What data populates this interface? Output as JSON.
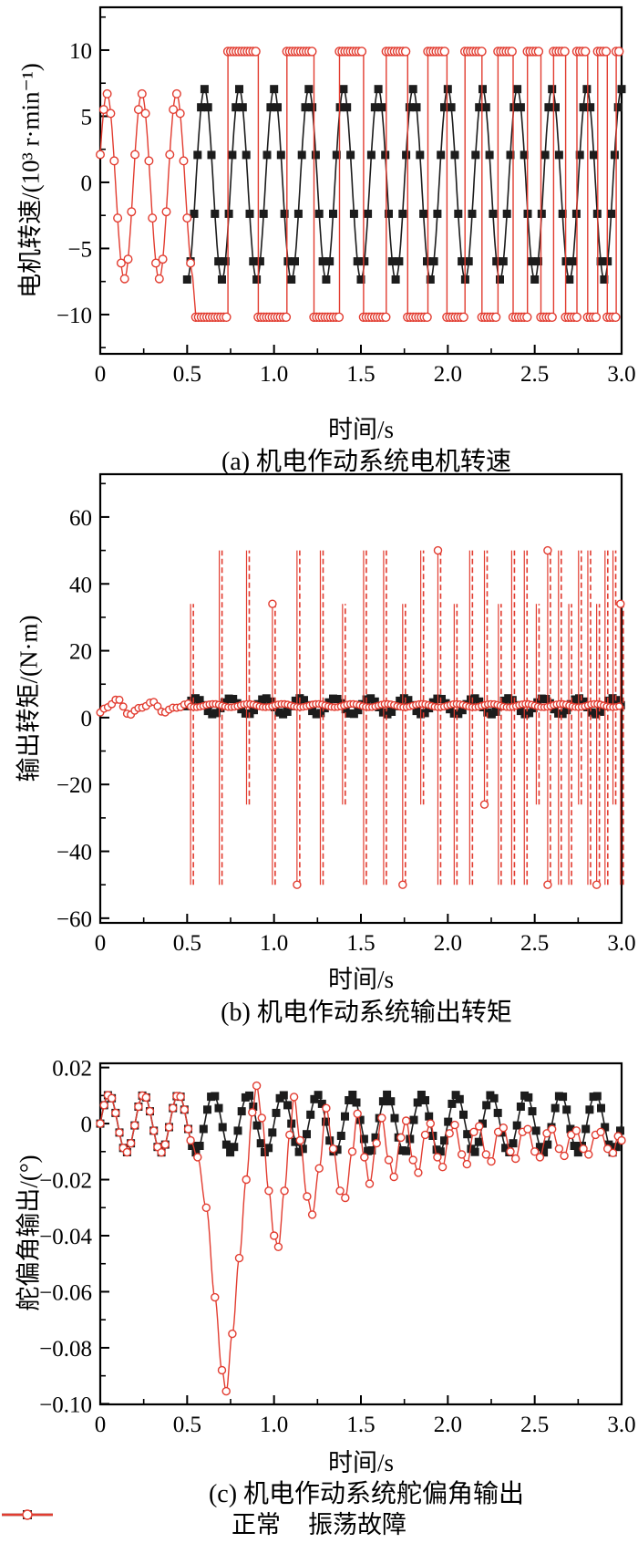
{
  "chart_data": [
    {
      "id": "a",
      "type": "line",
      "title": "(a) 机电作动系统电机转速",
      "xlabel": "时间/s",
      "ylabel": "电机转速/(10³ r·min⁻¹)",
      "xlim": [
        0,
        3
      ],
      "ylim": [
        -12.97,
        13.24
      ],
      "x_ticks": [
        {
          "v": 0,
          "label": "0"
        },
        {
          "v": 0.5,
          "label": "0.5"
        },
        {
          "v": 1.0,
          "label": "1.0"
        },
        {
          "v": 1.5,
          "label": "1.5"
        },
        {
          "v": 2.0,
          "label": "2.0"
        },
        {
          "v": 2.5,
          "label": "2.5"
        },
        {
          "v": 3.0,
          "label": "3.0"
        }
      ],
      "x_minor": [
        0.25,
        0.75,
        1.25,
        1.75,
        2.25,
        2.75
      ],
      "y_ticks": [
        {
          "v": 10,
          "label": "10"
        },
        {
          "v": 5,
          "label": "5"
        },
        {
          "v": 0,
          "label": "0"
        },
        {
          "v": -5,
          "label": "−5"
        },
        {
          "v": -10,
          "label": "−10"
        }
      ],
      "y_minor": [
        12.5,
        7.5,
        2.5,
        -2.5,
        -7.5,
        -12.5
      ],
      "series": [
        {
          "name": "正常",
          "color": "#1c1c1c",
          "marker": "square",
          "model": "sine",
          "t_start": 0.5,
          "t_end": 3.0,
          "amplitude": 7.2,
          "offset": -0.15,
          "period": 0.2,
          "phase": 1.5708,
          "marker_dt": 0.02,
          "description": "normal motor speed: ±7×10³ r/min sinusoid, period 0.2 s, starting at t=0.5 s"
        },
        {
          "name": "振荡故障",
          "color": "#e23c30",
          "marker": "circle",
          "model": "sine_square",
          "sine": {
            "t_start": 0,
            "t_end": 0.535,
            "amplitude": 7.0,
            "offset": -0.3,
            "period": 0.2,
            "phase": 0.35
          },
          "square": {
            "t_start": 0.55,
            "t_end": 3.0,
            "high": 9.9,
            "low": -10.2,
            "h0": 0.185,
            "h_slope": 0.0563,
            "h_min": 0.048
          },
          "marker_dt": 0.02,
          "flat_marker_dt": 0.016,
          "description": "oscillation fault: sinusoid until 0.5 s, then saturated square wave at ±10×10³ r/min with increasing frequency"
        }
      ]
    },
    {
      "id": "b",
      "type": "line",
      "title": "(b) 机电作动系统输出转矩",
      "xlabel": "时间/s",
      "ylabel": "输出转矩/(N·m)",
      "xlim": [
        0,
        3
      ],
      "ylim": [
        -61.4,
        72.8
      ],
      "x_ticks": [
        {
          "v": 0,
          "label": "0"
        },
        {
          "v": 0.5,
          "label": "0.5"
        },
        {
          "v": 1.0,
          "label": "1.0"
        },
        {
          "v": 1.5,
          "label": "1.5"
        },
        {
          "v": 2.0,
          "label": "2.0"
        },
        {
          "v": 2.5,
          "label": "2.5"
        },
        {
          "v": 3.0,
          "label": "3.0"
        }
      ],
      "x_minor": [
        0.25,
        0.75,
        1.25,
        1.75,
        2.25,
        2.75
      ],
      "y_ticks": [
        {
          "v": 60,
          "label": "60"
        },
        {
          "v": 40,
          "label": "40"
        },
        {
          "v": 20,
          "label": "20"
        },
        {
          "v": 0,
          "label": "0"
        },
        {
          "v": -20,
          "label": "−20"
        },
        {
          "v": -40,
          "label": "−40"
        },
        {
          "v": -60,
          "label": "−60"
        }
      ],
      "y_minor": [
        70,
        50,
        30,
        10,
        -10,
        -30,
        -50
      ],
      "series": [
        {
          "name": "正常",
          "color": "#1c1c1c",
          "marker": "square",
          "model": "sine",
          "t_start": 0.5,
          "t_end": 3.0,
          "amplitude": 2.4,
          "offset": 3.4,
          "period": 0.2,
          "phase": 3.1416,
          "marker_dt": 0.024,
          "description": "normal output torque: ~3.4±2.4 N·m sinusoid after 0.5 s"
        },
        {
          "name": "振荡故障",
          "color": "#e23c30",
          "marker": "circle",
          "model": "torque_fault",
          "pre": {
            "t_start": 0,
            "t_end": 0.52,
            "offset": 3.0,
            "amp1": 2.6,
            "decay1": 2.2,
            "freq1": 5,
            "phase1": -1.1,
            "amp2": 1.0,
            "decay2": 1.2,
            "freq2": 10,
            "phase2": 1.0
          },
          "baseline": {
            "t_start": 0.52,
            "t_end": 3.0,
            "level": 3.6,
            "wobble": 0.5
          },
          "spikes": {
            "start": 0.52,
            "t_end": 3.0,
            "h0": 0.165,
            "h_slope": 0.05,
            "h_min": 0.042,
            "top": 50,
            "bottom": -50,
            "alt_top": 34,
            "alt_bottom": -26
          },
          "marker_dt": 0.022,
          "baseline_marker_dt": 0.018,
          "description": "fault torque: ~3.6 N·m baseline with dashed spikes to ±50 N·m (some ±34/−26) at increasing rate after 0.52 s"
        }
      ]
    },
    {
      "id": "c",
      "type": "line",
      "title": "(c) 机电作动系统舵偏角输出",
      "xlabel": "时间/s",
      "ylabel": "舵偏角输出/(°)",
      "xlim": [
        0,
        3
      ],
      "ylim": [
        -0.1002,
        0.0215
      ],
      "x_ticks": [
        {
          "v": 0,
          "label": "0"
        },
        {
          "v": 0.5,
          "label": "0.5"
        },
        {
          "v": 1.0,
          "label": "1.0"
        },
        {
          "v": 1.5,
          "label": "1.5"
        },
        {
          "v": 2.0,
          "label": "2.0"
        },
        {
          "v": 2.5,
          "label": "2.5"
        },
        {
          "v": 3.0,
          "label": "3.0"
        }
      ],
      "x_minor": [
        0.25,
        0.75,
        1.25,
        1.75,
        2.25,
        2.75
      ],
      "y_ticks": [
        {
          "v": 0.02,
          "label": "0.02"
        },
        {
          "v": 0,
          "label": "0"
        },
        {
          "v": -0.02,
          "label": "−0.02"
        },
        {
          "v": -0.04,
          "label": "−0.04"
        },
        {
          "v": -0.06,
          "label": "−0.06"
        },
        {
          "v": -0.08,
          "label": "−0.08"
        },
        {
          "v": -0.1,
          "label": "−0.10"
        }
      ],
      "y_minor": [
        0.01,
        -0.01,
        -0.03,
        -0.05,
        -0.07,
        -0.09
      ],
      "series": [
        {
          "name": "正常",
          "color": "#1c1c1c",
          "marker": "square",
          "model": "sine",
          "t_start": 0,
          "t_end": 3.0,
          "amplitude": 0.0103,
          "offset": 0,
          "period": 0.2,
          "phase": 0,
          "marker_dt": 0.022,
          "description": "normal rudder deflection: ±0.01° sinusoid, period 0.2 s"
        },
        {
          "name": "振荡故障",
          "color": "#e23c30",
          "marker": "circle",
          "model": "sine_keypoints",
          "sine": {
            "t_start": 0,
            "t_end": 0.52,
            "amplitude": 0.0103,
            "offset": 0,
            "period": 0.2,
            "phase": 0
          },
          "marker_dt": 0.022,
          "keypoints": [
            [
              0.52,
              -0.006
            ],
            [
              0.56,
              -0.012
            ],
            [
              0.61,
              -0.03
            ],
            [
              0.66,
              -0.062
            ],
            [
              0.7,
              -0.088
            ],
            [
              0.725,
              -0.0955
            ],
            [
              0.76,
              -0.075
            ],
            [
              0.8,
              -0.048
            ],
            [
              0.84,
              -0.02
            ],
            [
              0.875,
              0.004
            ],
            [
              0.9,
              0.0135
            ],
            [
              0.93,
              0.002
            ],
            [
              0.97,
              -0.024
            ],
            [
              1.0,
              -0.04
            ],
            [
              1.025,
              -0.044
            ],
            [
              1.06,
              -0.024
            ],
            [
              1.09,
              -0.004
            ],
            [
              1.115,
              0.0095
            ],
            [
              1.15,
              -0.006
            ],
            [
              1.19,
              -0.026
            ],
            [
              1.22,
              -0.0325
            ],
            [
              1.26,
              -0.016
            ],
            [
              1.3,
              0.0055
            ],
            [
              1.34,
              -0.009
            ],
            [
              1.38,
              -0.024
            ],
            [
              1.41,
              -0.0265
            ],
            [
              1.45,
              -0.01
            ],
            [
              1.48,
              0.0035
            ],
            [
              1.52,
              -0.012
            ],
            [
              1.55,
              -0.0215
            ],
            [
              1.59,
              -0.007
            ],
            [
              1.62,
              0.002
            ],
            [
              1.66,
              -0.013
            ],
            [
              1.69,
              -0.019
            ],
            [
              1.73,
              -0.005
            ],
            [
              1.76,
              0.001
            ],
            [
              1.8,
              -0.013
            ],
            [
              1.83,
              -0.0175
            ],
            [
              1.87,
              -0.004
            ],
            [
              1.9,
              0.0
            ],
            [
              1.94,
              -0.012
            ],
            [
              1.97,
              -0.0155
            ],
            [
              2.01,
              -0.0035
            ],
            [
              2.04,
              -0.0005
            ],
            [
              2.08,
              -0.011
            ],
            [
              2.11,
              -0.0145
            ],
            [
              2.15,
              -0.003
            ],
            [
              2.18,
              -0.001
            ],
            [
              2.22,
              -0.011
            ],
            [
              2.25,
              -0.0135
            ],
            [
              2.29,
              -0.003
            ],
            [
              2.32,
              -0.0015
            ],
            [
              2.36,
              -0.01
            ],
            [
              2.39,
              -0.0125
            ],
            [
              2.43,
              -0.003
            ],
            [
              2.46,
              -0.002
            ],
            [
              2.5,
              -0.01
            ],
            [
              2.53,
              -0.012
            ],
            [
              2.57,
              -0.0035
            ],
            [
              2.6,
              -0.002
            ],
            [
              2.64,
              -0.009
            ],
            [
              2.67,
              -0.0115
            ],
            [
              2.71,
              -0.004
            ],
            [
              2.74,
              -0.0025
            ],
            [
              2.78,
              -0.009
            ],
            [
              2.81,
              -0.011
            ],
            [
              2.85,
              -0.004
            ],
            [
              2.88,
              -0.003
            ],
            [
              2.92,
              -0.009
            ],
            [
              2.95,
              -0.0105
            ],
            [
              2.98,
              -0.0045
            ],
            [
              3.0,
              -0.006
            ]
          ],
          "description": "fault rudder deflection: dips to −0.095° at t≈0.7 s, then damped oscillation converging to about −0.006°"
        }
      ]
    }
  ],
  "legend": {
    "items": [
      {
        "label": "正常",
        "color": "#1c1c1c",
        "marker": "square"
      },
      {
        "label": "振荡故障",
        "color": "#e23c30",
        "marker": "circle"
      }
    ]
  }
}
